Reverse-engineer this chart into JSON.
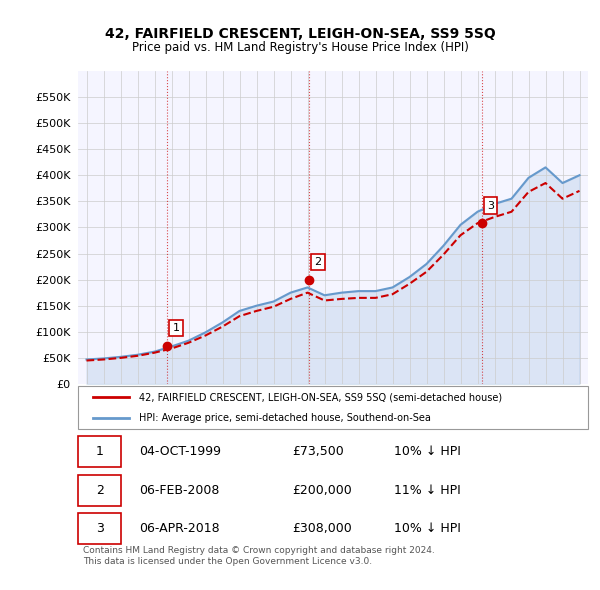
{
  "title": "42, FAIRFIELD CRESCENT, LEIGH-ON-SEA, SS9 5SQ",
  "subtitle": "Price paid vs. HM Land Registry's House Price Index (HPI)",
  "legend_label_red": "42, FAIRFIELD CRESCENT, LEIGH-ON-SEA, SS9 5SQ (semi-detached house)",
  "legend_label_blue": "HPI: Average price, semi-detached house, Southend-on-Sea",
  "copyright": "Contains HM Land Registry data © Crown copyright and database right 2024.\nThis data is licensed under the Open Government Licence v3.0.",
  "table_rows": [
    {
      "num": "1",
      "date": "04-OCT-1999",
      "price": "£73,500",
      "change": "10% ↓ HPI"
    },
    {
      "num": "2",
      "date": "06-FEB-2008",
      "price": "£200,000",
      "change": "11% ↓ HPI"
    },
    {
      "num": "3",
      "date": "06-APR-2018",
      "price": "£308,000",
      "change": "10% ↓ HPI"
    }
  ],
  "marker_years": [
    1999.75,
    2008.09,
    2018.25
  ],
  "marker_values_red": [
    73500,
    200000,
    308000
  ],
  "ylim": [
    0,
    600000
  ],
  "yticks": [
    0,
    50000,
    100000,
    150000,
    200000,
    250000,
    300000,
    350000,
    400000,
    450000,
    500000,
    550000
  ],
  "color_red": "#cc0000",
  "color_blue": "#6699cc",
  "color_grid": "#cccccc",
  "background_plot": "#f5f5ff",
  "background_fig": "#ffffff",
  "dashed_red_color": "#cc0000",
  "hpi_years": [
    1995,
    1996,
    1997,
    1998,
    1999,
    2000,
    2001,
    2002,
    2003,
    2004,
    2005,
    2006,
    2007,
    2008,
    2009,
    2010,
    2011,
    2012,
    2013,
    2014,
    2015,
    2016,
    2017,
    2018,
    2019,
    2020,
    2021,
    2022,
    2023,
    2024
  ],
  "hpi_values": [
    47000,
    49000,
    52000,
    56000,
    62000,
    72000,
    83000,
    99000,
    118000,
    140000,
    150000,
    158000,
    175000,
    185000,
    170000,
    175000,
    178000,
    178000,
    185000,
    205000,
    230000,
    265000,
    305000,
    330000,
    345000,
    355000,
    395000,
    415000,
    385000,
    400000
  ],
  "red_years": [
    1995,
    1996,
    1997,
    1998,
    1999,
    2000,
    2001,
    2002,
    2003,
    2004,
    2005,
    2006,
    2007,
    2008,
    2009,
    2010,
    2011,
    2012,
    2013,
    2014,
    2015,
    2016,
    2017,
    2018,
    2019,
    2020,
    2021,
    2022,
    2023,
    2024
  ],
  "red_values": [
    45000,
    47000,
    50000,
    54000,
    60000,
    68000,
    79000,
    93000,
    110000,
    130000,
    140000,
    148000,
    163000,
    175000,
    160000,
    163000,
    165000,
    165000,
    172000,
    192000,
    215000,
    248000,
    285000,
    308000,
    320000,
    330000,
    368000,
    385000,
    355000,
    370000
  ]
}
